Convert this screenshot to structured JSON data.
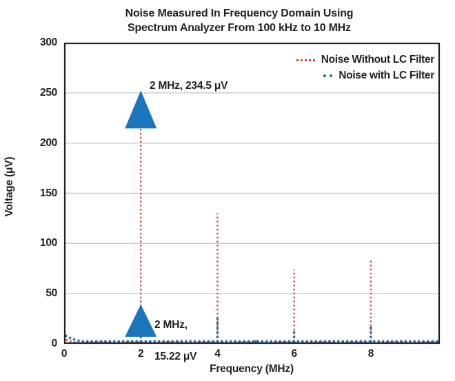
{
  "title": {
    "line1": "Noise Measured In Frequency Domain Using",
    "line2": "Spectrum Analyzer From 100 kHz to 10 MHz"
  },
  "axes": {
    "x_label": "Frequency (MHz)",
    "y_label": "Voltage (μV)"
  },
  "legend": {
    "items": [
      {
        "label": "Noise Without LC Filter"
      },
      {
        "label": "Noise with LC Filter"
      }
    ]
  },
  "annotations": {
    "peak_no_filter": "2 MHz, 234.5 μV",
    "peak_with_filter_line1": "2 MHz,",
    "peak_with_filter_line2": "15.22 μV"
  },
  "colors": {
    "no_filter_red": "#d6452e",
    "with_filter_blue": "#1e6db4",
    "marker_blue": "#1b75bc",
    "grid_gray": "#c9c9c9",
    "axis_dark": "#231f20"
  },
  "chart_data": {
    "type": "line",
    "title": "Noise Measured In Frequency Domain Using Spectrum Analyzer From 100 kHz to 10 MHz",
    "xlabel": "Frequency (MHz)",
    "ylabel": "Voltage (μV)",
    "xlim": [
      0,
      9.8
    ],
    "ylim": [
      0,
      300
    ],
    "x_ticks": [
      0,
      2,
      4,
      6,
      8
    ],
    "y_ticks": [
      0,
      50,
      100,
      150,
      200,
      250,
      300
    ],
    "grid": "horizontal-only",
    "legend_position": "top-right-inside",
    "series": [
      {
        "name": "Noise Without LC Filter",
        "color": "#d6452e",
        "style": "dotted",
        "baseline_uV": 1.5,
        "start_points": [
          {
            "x": 0.05,
            "y": 4
          },
          {
            "x": 0.3,
            "y": 1.5
          }
        ],
        "spikes": [
          {
            "freq_MHz": 2,
            "value_uV": 234.5
          },
          {
            "freq_MHz": 4,
            "value_uV": 130
          },
          {
            "freq_MHz": 6,
            "value_uV": 74
          },
          {
            "freq_MHz": 8,
            "value_uV": 85
          }
        ]
      },
      {
        "name": "Noise with LC Filter",
        "color": "#1e6db4",
        "style": "dotted",
        "baseline_uV": 2.5,
        "start_points": [
          {
            "x": 0.05,
            "y": 8
          },
          {
            "x": 0.2,
            "y": 5
          },
          {
            "x": 0.45,
            "y": 2.5
          }
        ],
        "spikes": [
          {
            "freq_MHz": 2,
            "value_uV": 15.22
          },
          {
            "freq_MHz": 4,
            "value_uV": 27
          },
          {
            "freq_MHz": 5,
            "value_uV": 5.5
          },
          {
            "freq_MHz": 6,
            "value_uV": 14
          },
          {
            "freq_MHz": 8,
            "value_uV": 17
          }
        ]
      }
    ],
    "annotations": [
      {
        "text": "2 MHz, 234.5 μV",
        "freq_MHz": 2,
        "value_uV": 234.5,
        "marker": "triangle-up",
        "marker_color": "#1b75bc"
      },
      {
        "text": "2 MHz, 15.22 μV",
        "freq_MHz": 2,
        "value_uV": 15.22,
        "marker": "triangle-up",
        "marker_color": "#1b75bc"
      }
    ]
  }
}
